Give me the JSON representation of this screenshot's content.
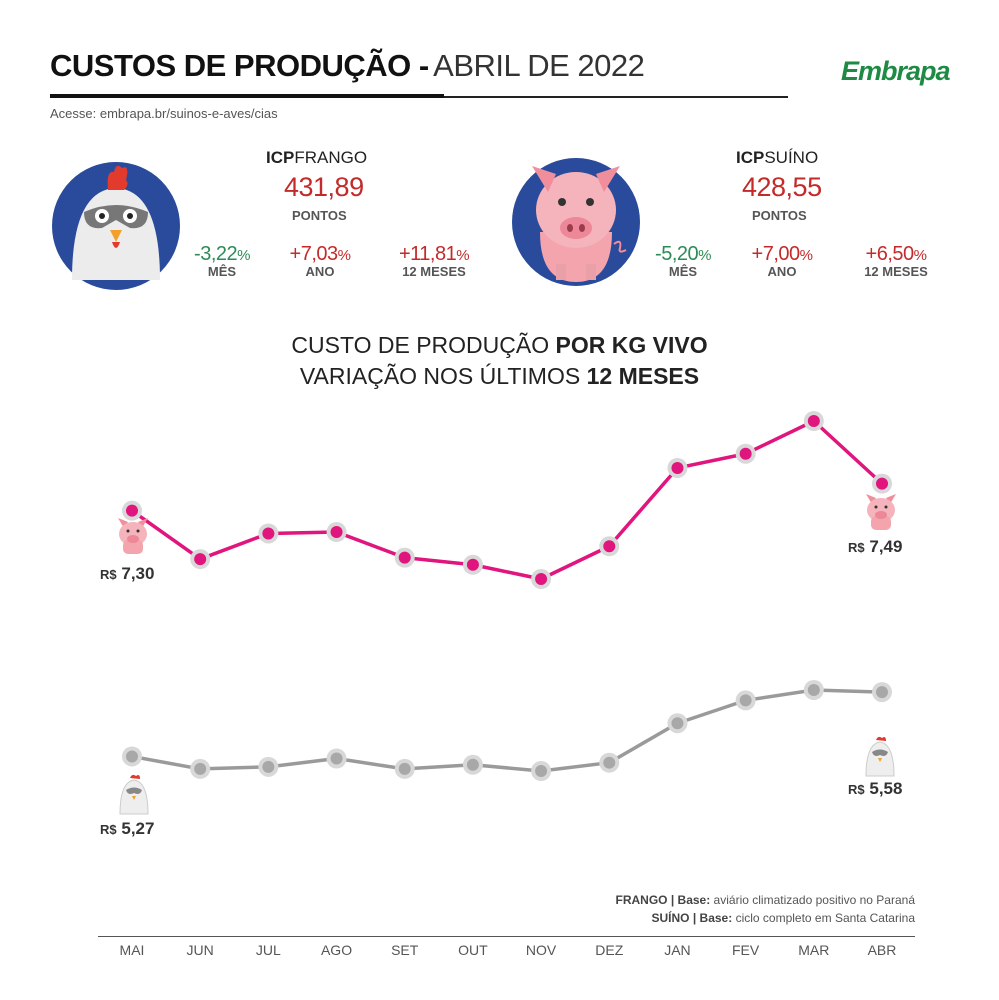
{
  "header": {
    "title_main": "CUSTOS DE PRODUÇÃO -",
    "title_date": "ABRIL DE 2022",
    "subtitle": "Acesse: embrapa.br/suinos-e-aves/cias",
    "logo": "Embrapa"
  },
  "frango": {
    "title_bold": "ICP",
    "title_rest": "FRANGO",
    "value": "431,89",
    "unit": "PONTOS",
    "stats": [
      {
        "value": "-3,22",
        "pct": "%",
        "label": "MÊS",
        "sign": "neg"
      },
      {
        "value": "+7,03",
        "pct": "%",
        "label": "ANO",
        "sign": "pos"
      },
      {
        "value": "+11,81",
        "pct": "%",
        "label": "12 MESES",
        "sign": "pos"
      }
    ]
  },
  "suino": {
    "title_bold": "ICP",
    "title_rest": "SUÍNO",
    "value": "428,55",
    "unit": "PONTOS",
    "stats": [
      {
        "value": "-5,20",
        "pct": "%",
        "label": "MÊS",
        "sign": "neg"
      },
      {
        "value": "+7,00",
        "pct": "%",
        "label": "ANO",
        "sign": "pos"
      },
      {
        "value": "+6,50",
        "pct": "%",
        "label": "12 MESES",
        "sign": "pos"
      }
    ]
  },
  "chart_title": {
    "line1_a": "CUSTO DE PRODUÇÃO ",
    "line1_b": "POR KG VIVO",
    "line2_a": "VARIAÇÃO NOS ÚLTIMOS ",
    "line2_b": "12 MESES"
  },
  "footnotes": {
    "frango_label": "FRANGO | Base:",
    "frango_text": " aviário climatizado positivo no Paraná",
    "suino_label": "SUÍNO | Base:",
    "suino_text": " ciclo completo em Santa Catarina"
  },
  "prices": {
    "currency": "R$",
    "suino_start": "7,30",
    "suino_end": "7,49",
    "frango_start": "5,27",
    "frango_end": "5,58"
  },
  "colors": {
    "suino_line": "#e0157d",
    "frango_line": "#9a9a9a",
    "marker_ring": "#d8d8d8",
    "frango_marker": "#a8a8a8",
    "icon_bg": "#2a4b9b"
  },
  "chart_data": {
    "type": "line",
    "title": "CUSTO DE PRODUÇÃO POR KG VIVO — VARIAÇÃO NOS ÚLTIMOS 12 MESES",
    "categories": [
      "MAI",
      "JUN",
      "JUL",
      "AGO",
      "SET",
      "OUT",
      "NOV",
      "DEZ",
      "JAN",
      "FEV",
      "MAR",
      "ABR"
    ],
    "series": [
      {
        "name": "SUÍNO",
        "values": [
          7.3,
          6.96,
          7.14,
          7.15,
          6.97,
          6.92,
          6.82,
          7.05,
          7.6,
          7.7,
          7.93,
          7.49
        ]
      },
      {
        "name": "FRANGO",
        "values": [
          5.27,
          5.21,
          5.22,
          5.26,
          5.21,
          5.23,
          5.2,
          5.24,
          5.43,
          5.54,
          5.59,
          5.58
        ]
      }
    ],
    "ylabel": "R$/kg",
    "xlabel": ""
  }
}
